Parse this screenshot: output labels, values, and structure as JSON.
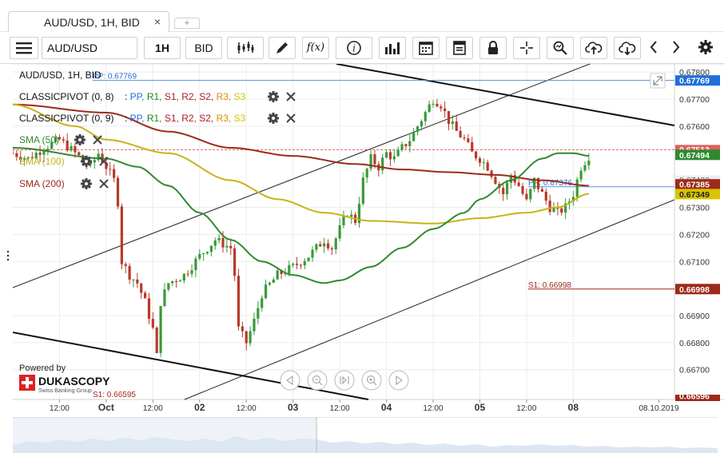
{
  "tab": {
    "title": "AUD/USD, 1H, BID",
    "close": "×",
    "add": "+"
  },
  "toolbar": {
    "instrument": "AUD/USD",
    "period": "1H",
    "side": "BID",
    "fx_label": "f(x)",
    "info_label": "i"
  },
  "legend": {
    "title": "AUD/USD, 1H, BID",
    "pivot1": {
      "name": "CLASSICPIVOT (0, 8)",
      "sep": " : ",
      "items": [
        "PP",
        "R1",
        "S1",
        "R2",
        "S2",
        "R3",
        "S3"
      ]
    },
    "pivot2": {
      "name": "CLASSICPIVOT (0, 9)",
      "sep": " : ",
      "items": [
        "PP",
        "R1",
        "S1",
        "R2",
        "S2",
        "R3",
        "S3"
      ]
    },
    "sma50": "SMA (50)",
    "sma100": "SMA (100)",
    "sma200": "SMA (200)"
  },
  "colors": {
    "pp": "#1e6fd9",
    "r1": "#1a8a1a",
    "s1": "#b02020",
    "r2": "#b02020",
    "s2": "#b02020",
    "r3": "#e08a00",
    "s3": "#d8c400",
    "sma50": "#2f8a2f",
    "sma100": "#c9b21a",
    "sma200": "#9c2a1a",
    "bull": "#3a9a3a",
    "bear": "#b83a2a"
  },
  "annotations": {
    "pp_top": "PP: 0.67769",
    "pp_mid": "PP: 0.67376",
    "s1_mid": "S1: 0.66998",
    "s1_bottom": "S1: 0.66595"
  },
  "price_badges": {
    "pp": "0.67769",
    "sma50": "0.67494",
    "sma200": "0.67385",
    "sma100": "0.67349",
    "s1": "0.66998",
    "hidden_top": "0.67513",
    "hidden_low": "0.67400",
    "hidden_bottom": "0.66596"
  },
  "powered": {
    "text": "Powered by",
    "brand": "DUKASCOPY",
    "tagline": "Swiss Banking Group"
  },
  "chart_data": {
    "type": "candlestick",
    "instrument": "AUD/USD",
    "timeframe": "1H",
    "price_ticks": [
      "0.67800",
      "0.67700",
      "0.67600",
      "0.67300",
      "0.67200",
      "0.67100",
      "0.66900",
      "0.66800",
      "0.66700"
    ],
    "tick_values": [
      0.678,
      0.677,
      0.676,
      0.673,
      0.672,
      0.671,
      0.669,
      0.668,
      0.667
    ],
    "ylim": [
      0.6659,
      0.6783
    ],
    "time_ticks": [
      "12:00",
      "Oct",
      "12:00",
      "02",
      "12:00",
      "03",
      "12:00",
      "04",
      "12:00",
      "05",
      "12:00",
      "08",
      "08.10.2019"
    ],
    "time_tick_hours": [
      -12,
      0,
      12,
      24,
      36,
      48,
      60,
      72,
      84,
      96,
      108,
      120,
      142
    ],
    "xlim": [
      -24,
      146
    ],
    "pivots": {
      "pp_top": 0.67769,
      "pp_mid": 0.67376,
      "s1_mid": 0.66998,
      "s1_bottom": 0.66595
    },
    "anchors": [
      [
        -24,
        0.675
      ],
      [
        -20,
        0.6748
      ],
      [
        -16,
        0.6752
      ],
      [
        -12,
        0.6755
      ],
      [
        -8,
        0.675
      ],
      [
        -4,
        0.6745
      ],
      [
        -2,
        0.675
      ],
      [
        0,
        0.6745
      ],
      [
        2,
        0.674
      ],
      [
        3,
        0.6732
      ],
      [
        4,
        0.671
      ],
      [
        6,
        0.6705
      ],
      [
        8,
        0.6702
      ],
      [
        10,
        0.6695
      ],
      [
        12,
        0.6685
      ],
      [
        13,
        0.6675
      ],
      [
        14,
        0.6695
      ],
      [
        16,
        0.6702
      ],
      [
        20,
        0.6705
      ],
      [
        24,
        0.6712
      ],
      [
        28,
        0.6718
      ],
      [
        32,
        0.6715
      ],
      [
        33,
        0.6705
      ],
      [
        34,
        0.6685
      ],
      [
        36,
        0.668
      ],
      [
        38,
        0.6688
      ],
      [
        40,
        0.6698
      ],
      [
        44,
        0.6705
      ],
      [
        48,
        0.6708
      ],
      [
        52,
        0.6712
      ],
      [
        56,
        0.6718
      ],
      [
        58,
        0.6715
      ],
      [
        60,
        0.6722
      ],
      [
        62,
        0.6728
      ],
      [
        64,
        0.6725
      ],
      [
        66,
        0.674
      ],
      [
        68,
        0.6748
      ],
      [
        70,
        0.6745
      ],
      [
        72,
        0.675
      ],
      [
        74,
        0.6748
      ],
      [
        76,
        0.6752
      ],
      [
        78,
        0.6755
      ],
      [
        80,
        0.676
      ],
      [
        82,
        0.6765
      ],
      [
        84,
        0.677
      ],
      [
        86,
        0.6768
      ],
      [
        88,
        0.6762
      ],
      [
        90,
        0.6758
      ],
      [
        92,
        0.6755
      ],
      [
        94,
        0.675
      ],
      [
        96,
        0.6748
      ],
      [
        98,
        0.6745
      ],
      [
        100,
        0.674
      ],
      [
        102,
        0.6735
      ],
      [
        104,
        0.6742
      ],
      [
        106,
        0.6738
      ],
      [
        108,
        0.6732
      ],
      [
        110,
        0.674
      ],
      [
        112,
        0.6735
      ],
      [
        114,
        0.673
      ],
      [
        116,
        0.6728
      ],
      [
        118,
        0.673
      ],
      [
        120,
        0.6735
      ],
      [
        122,
        0.6745
      ],
      [
        124,
        0.6749
      ]
    ],
    "sma50": [
      [
        -24,
        0.6752
      ],
      [
        0,
        0.6748
      ],
      [
        8,
        0.6745
      ],
      [
        16,
        0.6738
      ],
      [
        24,
        0.6728
      ],
      [
        32,
        0.6718
      ],
      [
        40,
        0.671
      ],
      [
        48,
        0.6705
      ],
      [
        56,
        0.6702
      ],
      [
        60,
        0.6703
      ],
      [
        68,
        0.6708
      ],
      [
        76,
        0.6715
      ],
      [
        84,
        0.6722
      ],
      [
        92,
        0.6728
      ],
      [
        96,
        0.6733
      ],
      [
        104,
        0.674
      ],
      [
        112,
        0.6748
      ],
      [
        116,
        0.675
      ],
      [
        120,
        0.675
      ],
      [
        124,
        0.6749
      ]
    ],
    "sma100": [
      [
        -24,
        0.6768
      ],
      [
        -8,
        0.676
      ],
      [
        0,
        0.6755
      ],
      [
        16,
        0.675
      ],
      [
        32,
        0.674
      ],
      [
        44,
        0.6733
      ],
      [
        56,
        0.6728
      ],
      [
        68,
        0.6725
      ],
      [
        84,
        0.6724
      ],
      [
        96,
        0.6726
      ],
      [
        108,
        0.6728
      ],
      [
        116,
        0.673
      ],
      [
        124,
        0.6735
      ]
    ],
    "sma200": [
      [
        -24,
        0.6768
      ],
      [
        0,
        0.6765
      ],
      [
        16,
        0.6758
      ],
      [
        32,
        0.6752
      ],
      [
        48,
        0.6749
      ],
      [
        64,
        0.6746
      ],
      [
        76,
        0.6744
      ],
      [
        88,
        0.6743
      ],
      [
        100,
        0.6742
      ],
      [
        112,
        0.674
      ],
      [
        124,
        0.6738
      ]
    ]
  }
}
